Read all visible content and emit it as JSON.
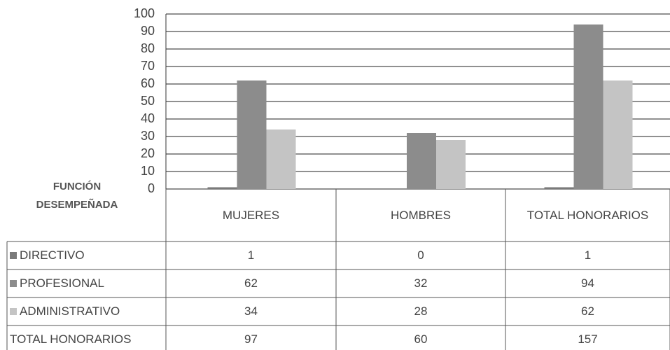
{
  "chart_data": {
    "type": "bar",
    "row_header": "FUNCIÓN DESEMPEÑADA",
    "categories": [
      "MUJERES",
      "HOMBRES",
      "TOTAL HONORARIOS"
    ],
    "series": [
      {
        "name": "DIRECTIVO",
        "color": "#7a7a7a",
        "values": [
          1,
          0,
          1
        ]
      },
      {
        "name": "PROFESIONAL",
        "color": "#8c8c8c",
        "values": [
          62,
          32,
          94
        ]
      },
      {
        "name": "ADMINISTRATIVO",
        "color": "#c4c4c4",
        "values": [
          34,
          28,
          62
        ]
      }
    ],
    "totals": {
      "name": "TOTAL HONORARIOS",
      "values": [
        97,
        60,
        157
      ]
    },
    "ylim": [
      0,
      100
    ],
    "yticks": [
      0,
      10,
      20,
      30,
      40,
      50,
      60,
      70,
      80,
      90,
      100
    ],
    "grid": true
  }
}
